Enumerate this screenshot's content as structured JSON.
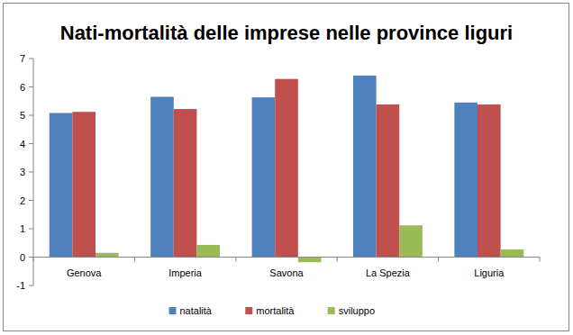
{
  "chart_data": {
    "type": "bar",
    "title": "Nati-mortalità delle imprese nelle province liguri",
    "categories": [
      "Genova",
      "Imperia",
      "Savona",
      "La Spezia",
      "Liguria"
    ],
    "series": [
      {
        "name": "natalità",
        "color": "#4f81bd",
        "values": [
          5.08,
          5.65,
          5.63,
          6.4,
          5.45
        ]
      },
      {
        "name": "mortalità",
        "color": "#c0504d",
        "values": [
          5.12,
          5.22,
          6.28,
          5.38,
          5.38
        ]
      },
      {
        "name": "sviluppo",
        "color": "#9bbb59",
        "values": [
          0.15,
          0.43,
          -0.18,
          1.12,
          0.27
        ]
      }
    ],
    "ylim": [
      -1,
      7
    ],
    "yticks": [
      -1,
      0,
      1,
      2,
      3,
      4,
      5,
      6,
      7
    ],
    "grid": false,
    "legend": "bottom"
  }
}
